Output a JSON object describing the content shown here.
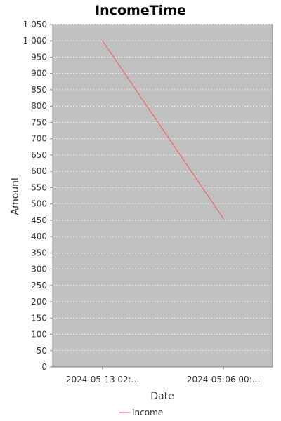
{
  "chart_data": {
    "type": "line",
    "title": "IncomeTime",
    "xlabel": "Date",
    "ylabel": "Amount",
    "categories": [
      "2024-05-13 02:...",
      "2024-05-06 00:..."
    ],
    "series": [
      {
        "name": "Income",
        "values": [
          1000,
          455
        ],
        "color": "#ff5555"
      }
    ],
    "ylim": [
      0,
      1050
    ],
    "yticks": [
      0,
      50,
      100,
      150,
      200,
      250,
      300,
      350,
      400,
      450,
      500,
      550,
      600,
      650,
      700,
      750,
      800,
      850,
      900,
      950,
      1000,
      1050
    ],
    "ytick_labels": [
      "0",
      "50",
      "100",
      "150",
      "200",
      "250",
      "300",
      "350",
      "400",
      "450",
      "500",
      "550",
      "600",
      "650",
      "700",
      "750",
      "800",
      "850",
      "900",
      "950",
      "1 000",
      "1 050"
    ],
    "grid": true,
    "legend": "bottom-center",
    "plot_background": "#c0c0c0"
  }
}
